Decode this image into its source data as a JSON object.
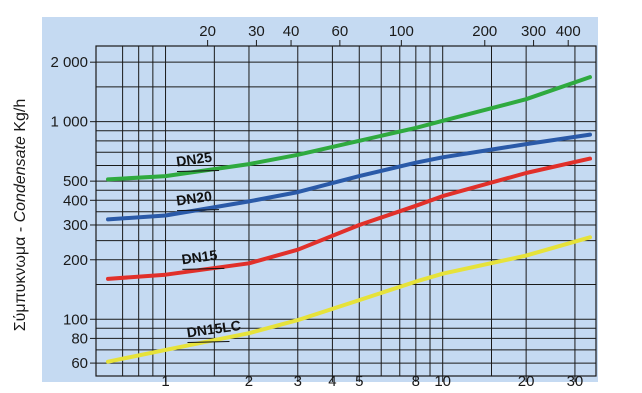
{
  "chart_data": {
    "type": "line",
    "title": "",
    "xlabel": "",
    "x_scale": "log",
    "y_scale": "log",
    "xlim": [
      0.62,
      34
    ],
    "ylim": [
      58,
      2100
    ],
    "grid": true,
    "background_color": "#c5daf2",
    "ylabel_parts": [
      "Σύμπυκνωμα - ",
      "Condensate",
      " Kg/h"
    ],
    "bottom_ticks": [
      {
        "value": 1,
        "label": "1"
      },
      {
        "value": 2,
        "label": "2"
      },
      {
        "value": 3,
        "label": "3"
      },
      {
        "value": 4,
        "label": "4"
      },
      {
        "value": 5,
        "label": "5"
      },
      {
        "value": 8,
        "label": "8"
      },
      {
        "value": 10,
        "label": "10"
      },
      {
        "value": 20,
        "label": "20"
      },
      {
        "value": 30,
        "label": "30"
      }
    ],
    "top_ticks": [
      {
        "value": 20,
        "label": "20"
      },
      {
        "value": 30,
        "label": "30"
      },
      {
        "value": 40,
        "label": "40"
      },
      {
        "value": 60,
        "label": "60"
      },
      {
        "value": 100,
        "label": "100"
      },
      {
        "value": 200,
        "label": "200"
      },
      {
        "value": 300,
        "label": "300"
      },
      {
        "value": 400,
        "label": "400"
      }
    ],
    "y_ticks": [
      {
        "value": 60,
        "label": "60"
      },
      {
        "value": 80,
        "label": "80"
      },
      {
        "value": 100,
        "label": "100"
      },
      {
        "value": 200,
        "label": "200"
      },
      {
        "value": 300,
        "label": "300"
      },
      {
        "value": 400,
        "label": "400"
      },
      {
        "value": 500,
        "label": "500"
      },
      {
        "value": 1000,
        "label": "1 000"
      },
      {
        "value": 2000,
        "label": "2 000"
      }
    ],
    "x_grid": [
      0.7,
      0.8,
      0.9,
      1,
      1.5,
      2,
      3,
      4,
      5,
      6,
      7,
      8,
      9,
      10,
      15,
      20,
      30
    ],
    "y_grid": [
      60,
      70,
      80,
      90,
      100,
      150,
      200,
      250,
      300,
      350,
      400,
      450,
      500,
      600,
      700,
      800,
      900,
      1000,
      1500,
      2000
    ],
    "series": [
      {
        "name": "DN25",
        "color": "#2faa3f",
        "label_at": 1.1,
        "points": [
          [
            0.62,
            510
          ],
          [
            1,
            530
          ],
          [
            2,
            610
          ],
          [
            3,
            680
          ],
          [
            5,
            800
          ],
          [
            8,
            930
          ],
          [
            10,
            1010
          ],
          [
            20,
            1300
          ],
          [
            34,
            1680
          ]
        ]
      },
      {
        "name": "DN20",
        "color": "#2a5aa8",
        "label_at": 1.1,
        "points": [
          [
            0.62,
            320
          ],
          [
            1,
            335
          ],
          [
            2,
            395
          ],
          [
            3,
            440
          ],
          [
            5,
            530
          ],
          [
            8,
            620
          ],
          [
            10,
            660
          ],
          [
            20,
            770
          ],
          [
            34,
            860
          ]
        ]
      },
      {
        "name": "DN15",
        "color": "#e1302a",
        "label_at": 1.15,
        "points": [
          [
            0.62,
            160
          ],
          [
            1,
            168
          ],
          [
            2,
            192
          ],
          [
            3,
            225
          ],
          [
            5,
            300
          ],
          [
            8,
            375
          ],
          [
            10,
            420
          ],
          [
            20,
            550
          ],
          [
            34,
            650
          ]
        ]
      },
      {
        "name": "DN15LC",
        "color": "#e6e23a",
        "label_at": 1.2,
        "points": [
          [
            0.62,
            61
          ],
          [
            1,
            70
          ],
          [
            2,
            85
          ],
          [
            3,
            99
          ],
          [
            5,
            125
          ],
          [
            8,
            155
          ],
          [
            10,
            170
          ],
          [
            20,
            210
          ],
          [
            34,
            260
          ]
        ]
      }
    ]
  }
}
